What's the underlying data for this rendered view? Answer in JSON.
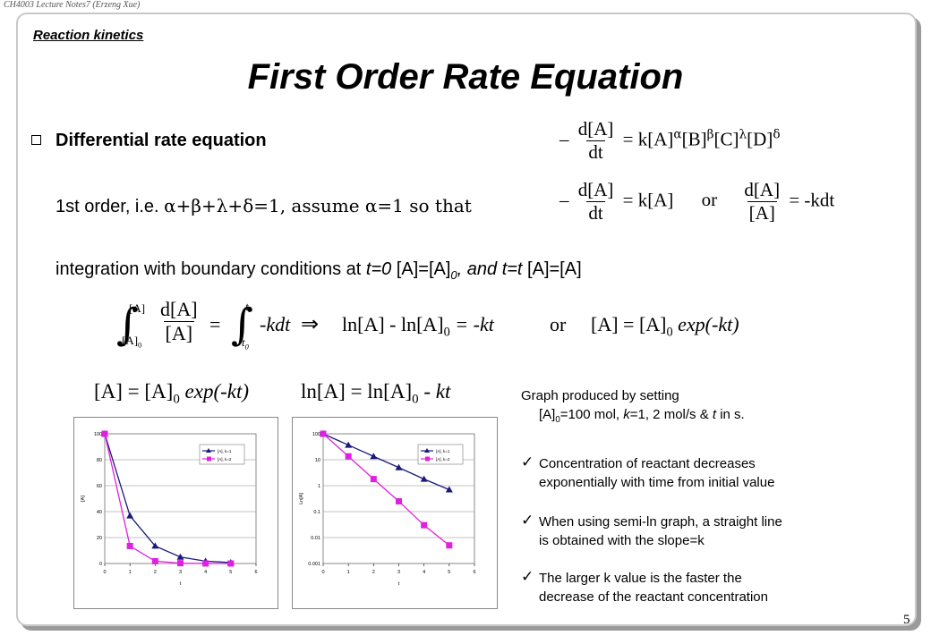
{
  "header": "CH4003 Lecture Notes7 (Erzeng Xue)",
  "section": "Reaction kinetics",
  "title": "First Order Rate Equation",
  "bullet": "Differential rate equation",
  "line1_prefix": "1st order, i.e. ",
  "line1_greek": "α+β+λ+δ=1, assume α=1 so that",
  "line2": {
    "a": "integration with boundary conditions at ",
    "b": "t=0",
    "c": " [A]=[A]",
    "c_sub": "0",
    "d": ", and ",
    "e": "t=t",
    "f": " [A]=[A]"
  },
  "eq": {
    "minus": "–",
    "dA": "d[A]",
    "dt": "dt",
    "equals": "=",
    "rhs1": "k[A]",
    "exps": [
      "α",
      "β",
      "λ",
      "δ"
    ],
    "rhs1_parts": [
      "[B]",
      "[C]",
      "[D]"
    ],
    "or": "or",
    "A": "[A]",
    "mkdt": "-kdt",
    "int_upper": "[A]",
    "int_lower": "[A]",
    "int_lower_sub": "0",
    "t_upper": "t",
    "t_lower": "t",
    "t_lower_sub": "0",
    "implies": "⇒",
    "ln": "ln[A] - ln[A]",
    "ln_sub": "0",
    "mkt": "= -kt",
    "exp_left": "[A] = [A]",
    "exp_sub": "0",
    "exp_right": " exp(-kt)",
    "ln_eq_left": "ln[A] = ln[A]",
    "ln_eq_right": " - kt"
  },
  "note": {
    "l1": "Graph produced by setting",
    "l2a": "[A]",
    "l2sub": "0",
    "l2b": "=100 mol, ",
    "l2c": "k",
    "l2d": "=1, 2 mol/s & ",
    "l2e": "t",
    "l2f": " in s."
  },
  "checks": [
    {
      "a": "Concentration of reactant decreases",
      "b": "exponentially with time from initial value"
    },
    {
      "a": "When using semi-ln graph, a straight line",
      "b": "is obtained with the slope=k"
    },
    {
      "a": "The larger k value is the faster the",
      "b": "decrease of the reactant concentration"
    }
  ],
  "check_mark": "✓",
  "page_number": "5",
  "colors": {
    "series1": "#1a1a7a",
    "series2": "#e020e0",
    "plot_bg": "#ffffff"
  },
  "chart_data": [
    {
      "type": "line",
      "xlabel": "t",
      "ylabel": "[A]",
      "xlim": [
        0,
        6
      ],
      "ylim": [
        0,
        100
      ],
      "yticks": [
        "0",
        "20",
        "40",
        "60",
        "80",
        "100"
      ],
      "xticks": [
        "0",
        "1",
        "2",
        "3",
        "4",
        "5",
        "6"
      ],
      "series": [
        {
          "name": "[A], k=1",
          "x": [
            0,
            1,
            2,
            3,
            4,
            5
          ],
          "values": [
            100,
            36.8,
            13.5,
            5.0,
            1.8,
            0.7
          ]
        },
        {
          "name": "[A], k=2",
          "x": [
            0,
            1,
            2,
            3,
            4,
            5
          ],
          "values": [
            100,
            13.5,
            1.8,
            0.25,
            0.03,
            0.005
          ]
        }
      ],
      "legend": "top-right"
    },
    {
      "type": "line",
      "xlabel": "t",
      "ylabel": "Ln[A]",
      "xlim": [
        0,
        6
      ],
      "ylim": [
        0.001,
        100
      ],
      "scale": "log",
      "yticks": [
        "0.001",
        "0.01",
        "0.1",
        "1",
        "10",
        "100"
      ],
      "xticks": [
        "0",
        "1",
        "2",
        "3",
        "4",
        "5",
        "6"
      ],
      "series": [
        {
          "name": "[A], k=1",
          "x": [
            0,
            1,
            2,
            3,
            4,
            5
          ],
          "values": [
            100,
            36.8,
            13.5,
            5.0,
            1.8,
            0.7
          ]
        },
        {
          "name": "[A], k=2",
          "x": [
            0,
            1,
            2,
            3,
            4,
            5
          ],
          "values": [
            100,
            13.5,
            1.8,
            0.25,
            0.03,
            0.005
          ]
        }
      ],
      "legend": "top-right"
    }
  ]
}
